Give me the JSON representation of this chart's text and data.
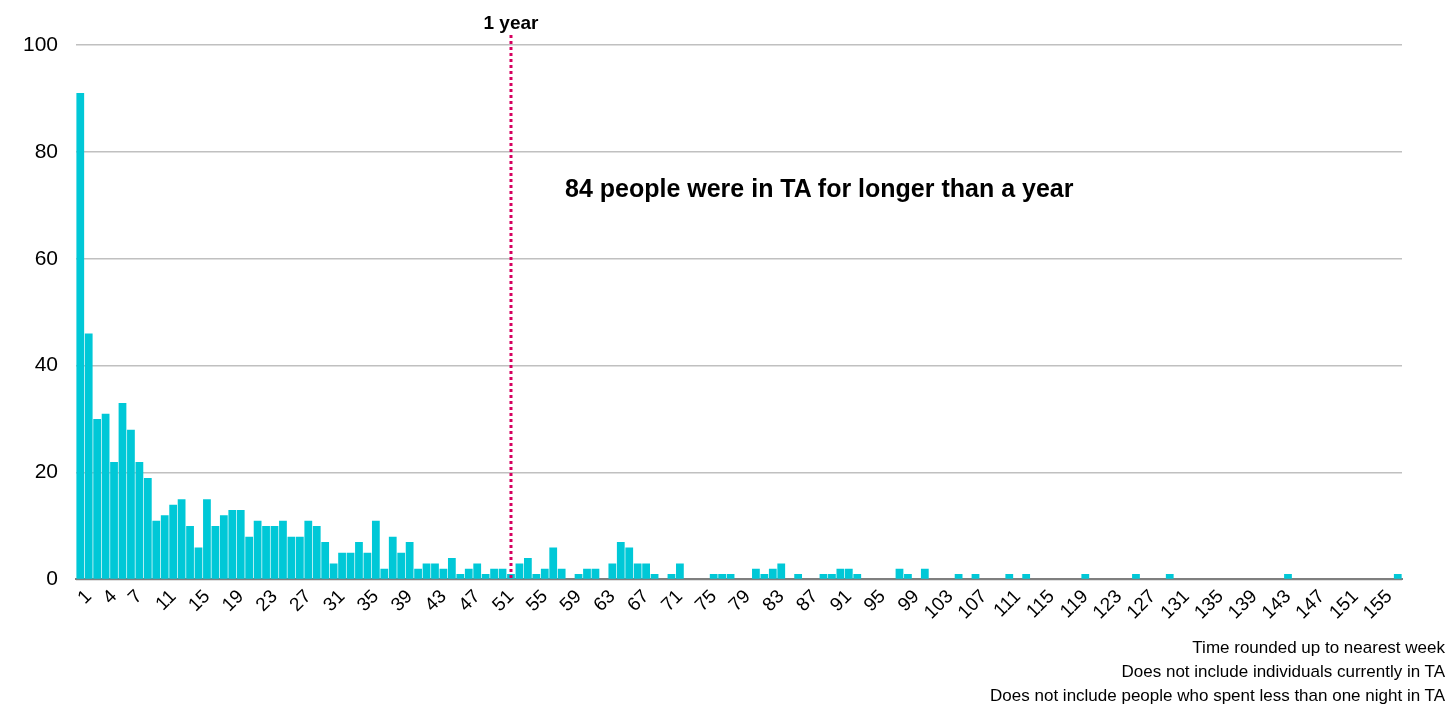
{
  "chart_data": {
    "type": "bar",
    "categories": [
      null,
      "1",
      null,
      null,
      "4",
      null,
      null,
      "7",
      null,
      null,
      null,
      "11",
      null,
      null,
      null,
      "15",
      null,
      null,
      null,
      "19",
      null,
      null,
      null,
      "23",
      null,
      null,
      null,
      "27",
      null,
      null,
      null,
      "31",
      null,
      null,
      null,
      "35",
      null,
      null,
      null,
      "39",
      null,
      null,
      null,
      "43",
      null,
      null,
      null,
      "47",
      null,
      null,
      null,
      "51",
      null,
      null,
      null,
      "55",
      null,
      null,
      null,
      "59",
      null,
      null,
      null,
      "63",
      null,
      null,
      null,
      "67",
      null,
      null,
      null,
      "71",
      null,
      null,
      null,
      "75",
      null,
      null,
      null,
      "79",
      null,
      null,
      null,
      "83",
      null,
      null,
      null,
      "87",
      null,
      null,
      null,
      "91",
      null,
      null,
      null,
      "95",
      null,
      null,
      null,
      "99",
      null,
      null,
      null,
      "103",
      null,
      null,
      null,
      "107",
      null,
      null,
      null,
      "111",
      null,
      null,
      null,
      "115",
      null,
      null,
      null,
      "119",
      null,
      null,
      null,
      "123",
      null,
      null,
      null,
      "127",
      null,
      null,
      null,
      "131",
      null,
      null,
      null,
      "135",
      null,
      null,
      null,
      "139",
      null,
      null,
      null,
      "143",
      null,
      null,
      null,
      "147",
      null,
      null,
      null,
      "151",
      null,
      null,
      null,
      "155",
      null
    ],
    "values": [
      91,
      46,
      30,
      31,
      22,
      33,
      28,
      22,
      19,
      11,
      12,
      14,
      15,
      10,
      6,
      15,
      10,
      12,
      13,
      13,
      8,
      11,
      10,
      10,
      11,
      8,
      8,
      11,
      10,
      7,
      3,
      5,
      5,
      7,
      5,
      11,
      2,
      8,
      5,
      7,
      2,
      3,
      3,
      2,
      4,
      1,
      2,
      3,
      1,
      2,
      2,
      1,
      3,
      4,
      1,
      2,
      6,
      2,
      0,
      1,
      2,
      2,
      0,
      3,
      7,
      6,
      3,
      3,
      1,
      0,
      1,
      3,
      0,
      0,
      0,
      1,
      1,
      1,
      0,
      0,
      2,
      1,
      2,
      3,
      0,
      1,
      0,
      0,
      1,
      1,
      2,
      2,
      1,
      0,
      0,
      0,
      0,
      2,
      1,
      0,
      2,
      0,
      0,
      0,
      1,
      0,
      1,
      0,
      0,
      0,
      1,
      0,
      1,
      0,
      0,
      0,
      0,
      0,
      0,
      1,
      0,
      0,
      0,
      0,
      0,
      1,
      0,
      0,
      0,
      1,
      0,
      0,
      0,
      0,
      0,
      0,
      0,
      0,
      0,
      0,
      0,
      0,
      0,
      1,
      0,
      0,
      0,
      0,
      0,
      0,
      0,
      0,
      0,
      0,
      0,
      0,
      1
    ],
    "color": "#00c8d7",
    "ylim": [
      0,
      100
    ],
    "yticks": [
      0,
      20,
      40,
      60,
      80,
      100
    ],
    "grid": "y",
    "ref_lines": [
      {
        "axis": "x",
        "value": "51",
        "label": "1 year",
        "color": "#d6005f",
        "line_style": "dotted"
      }
    ],
    "annotations": [
      "84 people were in TA for longer than a year",
      "Time rounded up to nearest week",
      "Does not include individuals currently in TA",
      "Does not include people who spent less than one night in TA"
    ]
  }
}
